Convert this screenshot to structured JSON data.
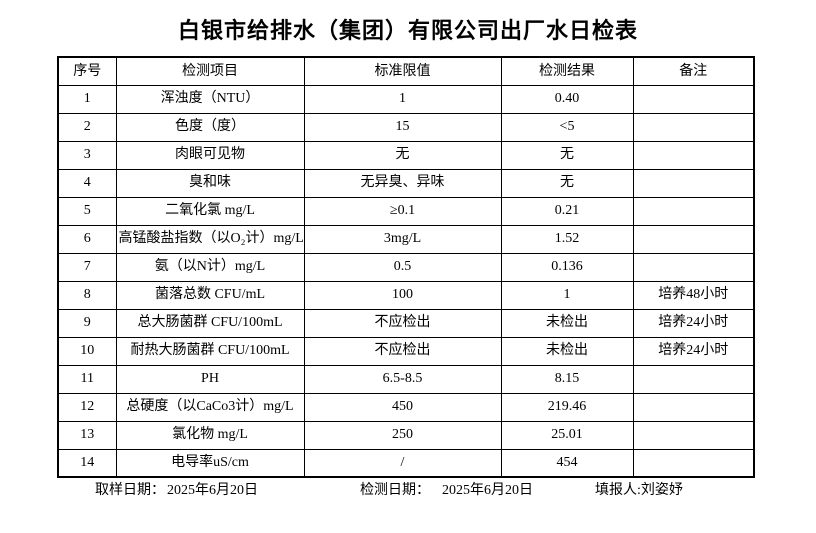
{
  "title": "白银市给排水（集团）有限公司出厂水日检表",
  "table": {
    "headers": [
      "序号",
      "检测项目",
      "标准限值",
      "检测结果",
      "备注"
    ],
    "rows": [
      {
        "no": "1",
        "item": "浑浊度（NTU）",
        "limit": "1",
        "result": "0.40",
        "note": ""
      },
      {
        "no": "2",
        "item": "色度（度）",
        "limit": "15",
        "result": "<5",
        "note": ""
      },
      {
        "no": "3",
        "item": "肉眼可见物",
        "limit": "无",
        "result": "无",
        "note": ""
      },
      {
        "no": "4",
        "item": "臭和味",
        "limit": "无异臭、异味",
        "result": "无",
        "note": ""
      },
      {
        "no": "5",
        "item": "二氧化氯 mg/L",
        "limit": "≥0.1",
        "result": "0.21",
        "note": ""
      },
      {
        "no": "6",
        "item": "高锰酸盐指数（以O₂计）mg/L",
        "limit": "3mg/L",
        "result": "1.52",
        "note": ""
      },
      {
        "no": "7",
        "item": "氨（以N计）mg/L",
        "limit": "0.5",
        "result": "0.136",
        "note": ""
      },
      {
        "no": "8",
        "item": "菌落总数 CFU/mL",
        "limit": "100",
        "result": "1",
        "note": "培养48小时"
      },
      {
        "no": "9",
        "item": "总大肠菌群 CFU/100mL",
        "limit": "不应检出",
        "result": "未检出",
        "note": "培养24小时"
      },
      {
        "no": "10",
        "item": "耐热大肠菌群 CFU/100mL",
        "limit": "不应检出",
        "result": "未检出",
        "note": "培养24小时"
      },
      {
        "no": "11",
        "item": "PH",
        "limit": "6.5-8.5",
        "result": "8.15",
        "note": ""
      },
      {
        "no": "12",
        "item": "总硬度（以CaCo3计）mg/L",
        "limit": "450",
        "result": "219.46",
        "note": ""
      },
      {
        "no": "13",
        "item": "氯化物 mg/L",
        "limit": "250",
        "result": "25.01",
        "note": ""
      },
      {
        "no": "14",
        "item": "电导率uS/cm",
        "limit": "/",
        "result": "454",
        "note": ""
      }
    ]
  },
  "footer": {
    "sample_date_label": "取样日期：",
    "sample_date": "2025年6月20日",
    "test_date_label": "检测日期：",
    "test_date": "2025年6月20日",
    "reporter_label": "填报人:",
    "reporter": "刘姿妤"
  }
}
